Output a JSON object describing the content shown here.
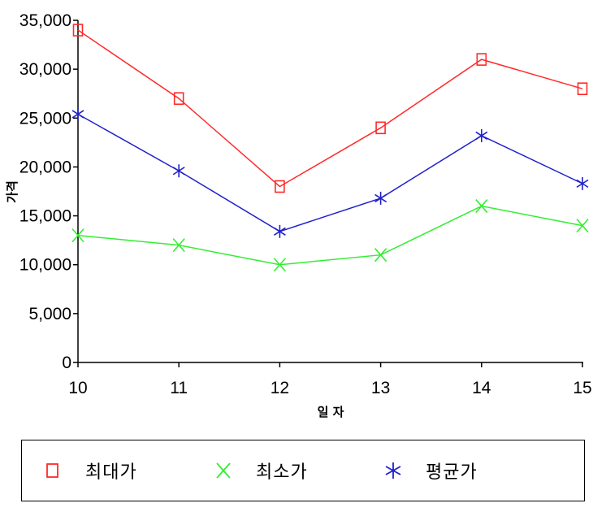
{
  "chart_data": {
    "type": "line",
    "categories": [
      "10",
      "11",
      "12",
      "13",
      "14",
      "15"
    ],
    "series": [
      {
        "name": "최대가",
        "color": "#ff2a2a",
        "marker": "square",
        "values": [
          34000,
          27000,
          18000,
          24000,
          31000,
          28000
        ]
      },
      {
        "name": "최소가",
        "color": "#33ee33",
        "marker": "x",
        "values": [
          13000,
          12000,
          10000,
          11000,
          16000,
          14000
        ]
      },
      {
        "name": "평균가",
        "color": "#2020cc",
        "marker": "asterisk",
        "values": [
          25400,
          19600,
          13400,
          16800,
          23200,
          18300
        ]
      }
    ],
    "xlabel": "일 자",
    "ylabel": "가격",
    "ylim": [
      0,
      35000
    ],
    "yticks": [
      "0",
      "5,000",
      "10,000",
      "15,000",
      "20,000",
      "25,000",
      "30,000",
      "35,000"
    ],
    "grid": false,
    "legend_position": "bottom"
  }
}
